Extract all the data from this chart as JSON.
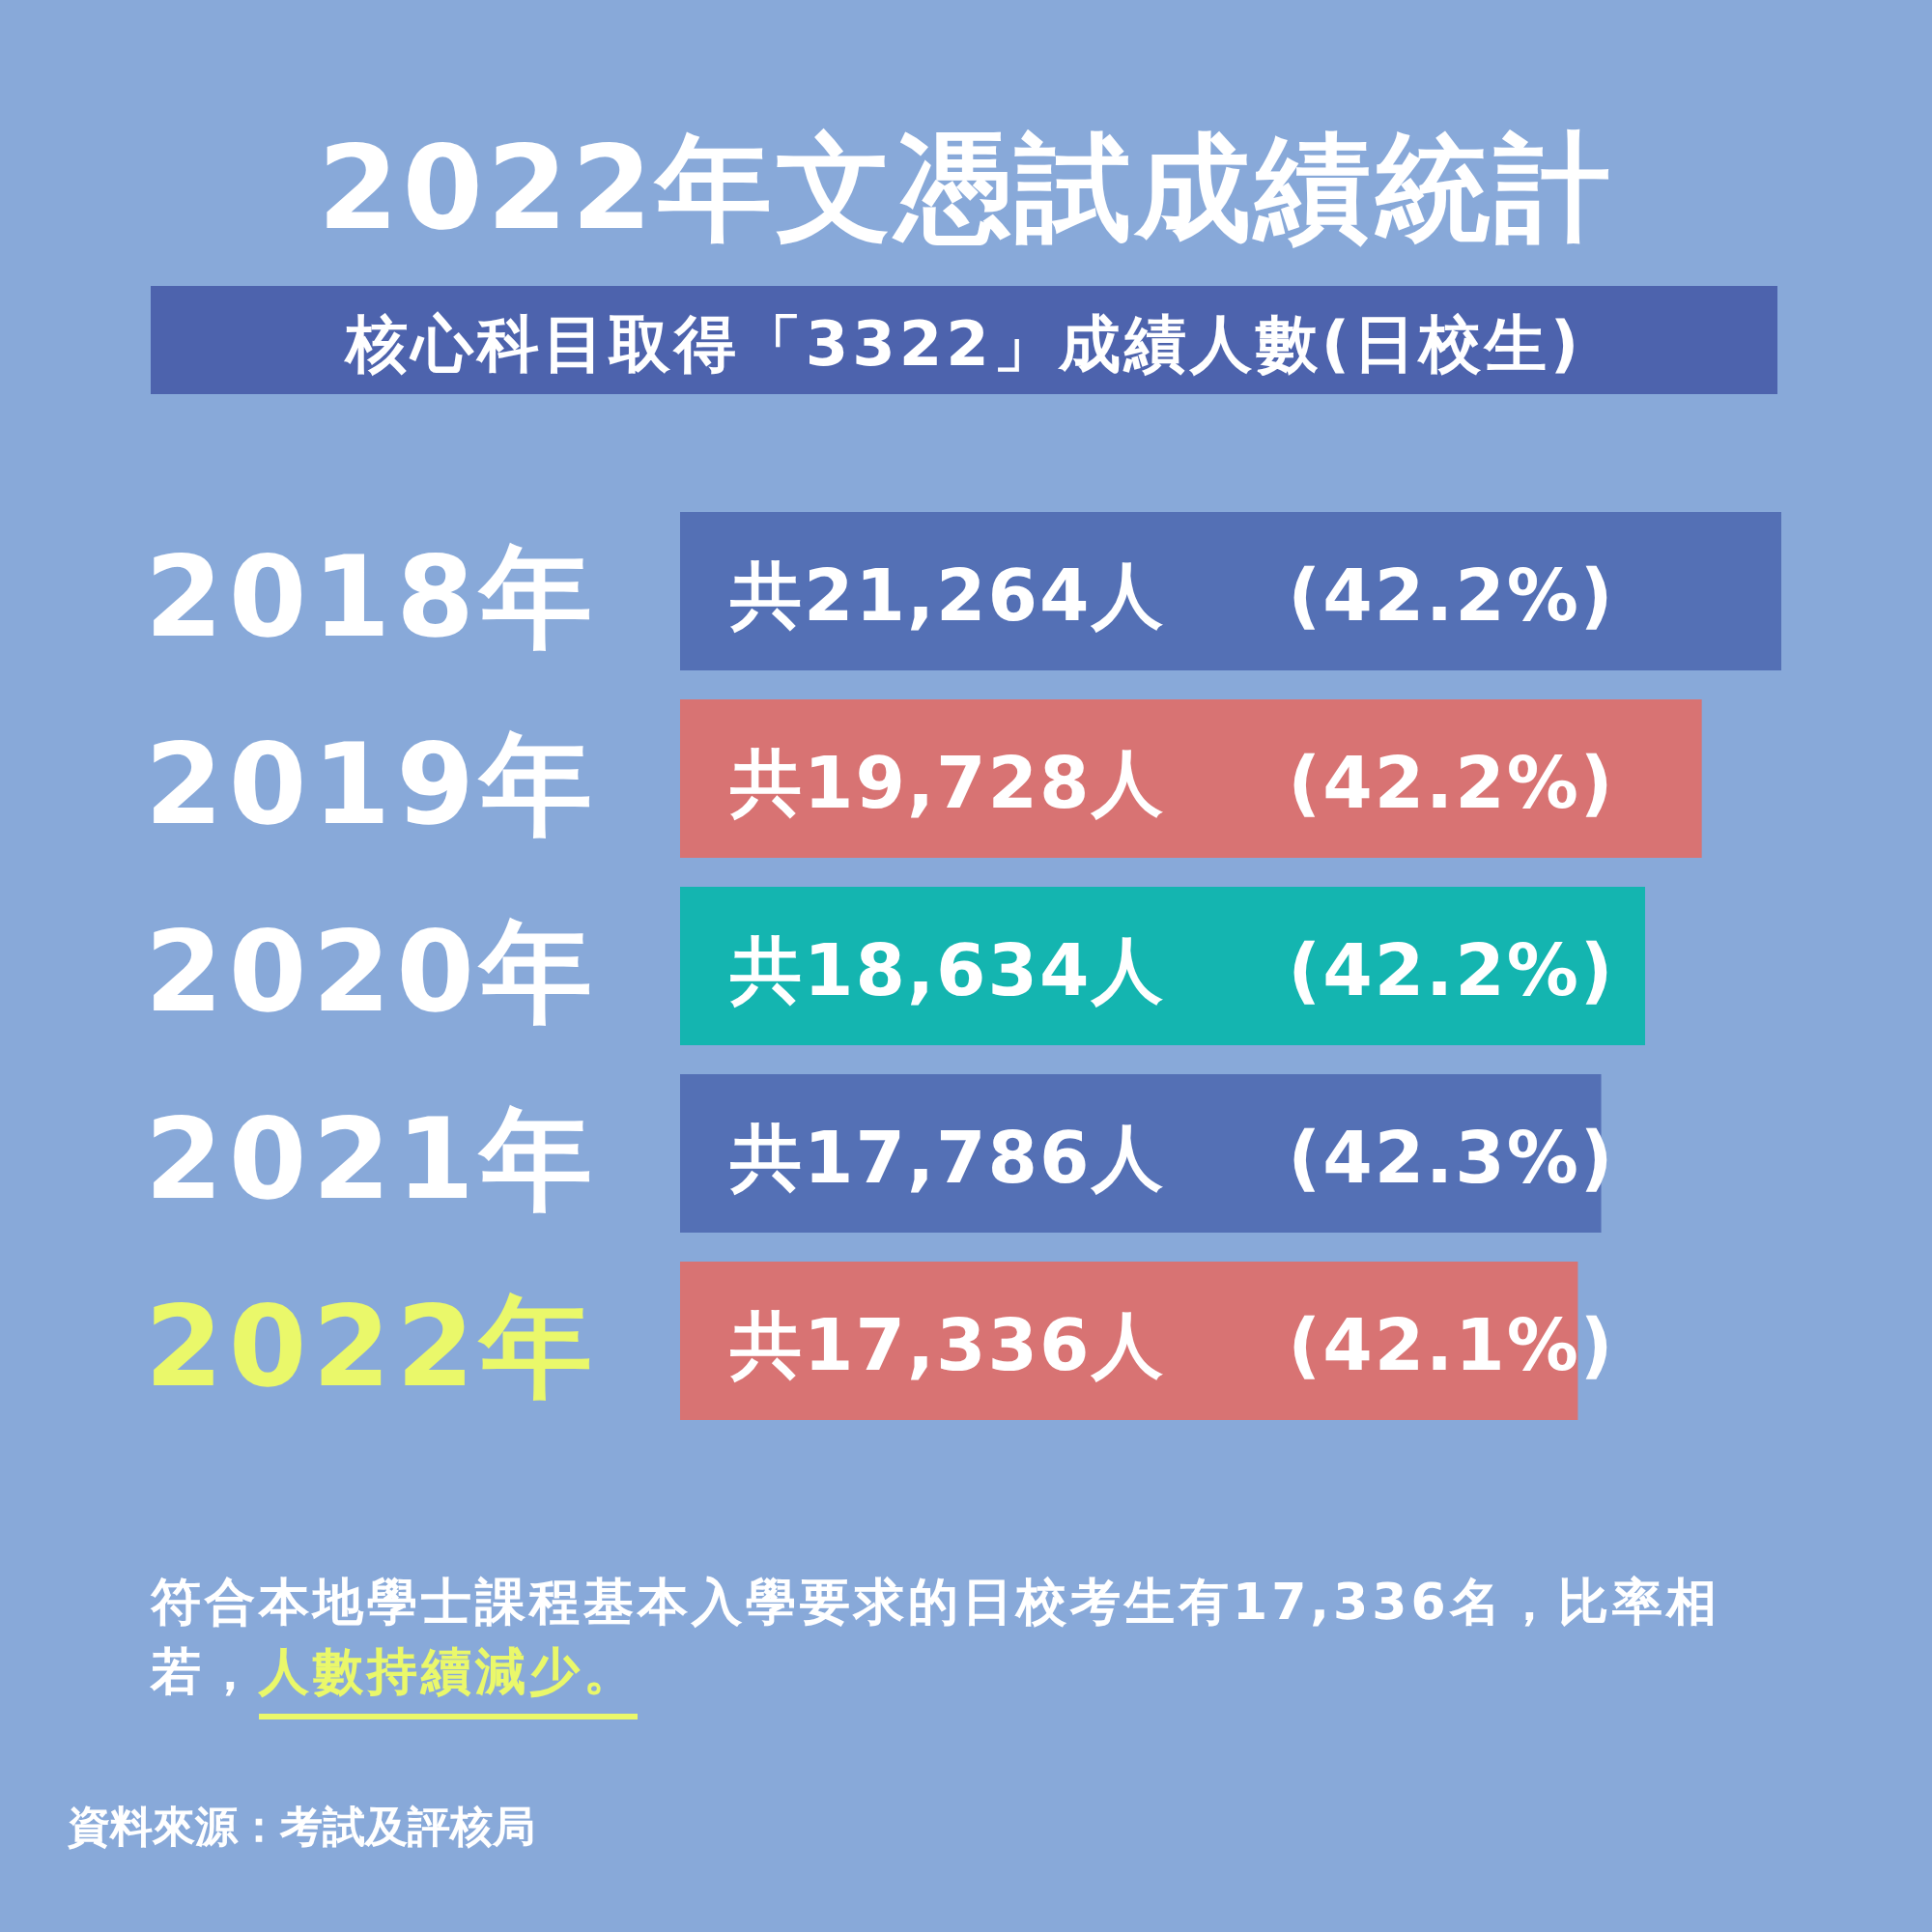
{
  "chart_data": {
    "type": "bar",
    "orientation": "horizontal",
    "title": "2022年文憑試成績統計",
    "subtitle": "核心科目取得「3322」成績人數(日校生)",
    "categories": [
      "2018年",
      "2019年",
      "2020年",
      "2021年",
      "2022年"
    ],
    "values": [
      21264,
      19728,
      18634,
      17786,
      17336
    ],
    "colors": [
      "#5470b5",
      "#d87373",
      "#14b5b0",
      "#5470b5",
      "#d87373"
    ],
    "value_labels": [
      "共21,264人 (42.2%)",
      "共19,728人 (42.2%)",
      "共18,634人 (42.2%)",
      "共17,786人 (42.3%)",
      "共17,336人 (42.1%)"
    ],
    "annotations": [
      "符合本地學士課程基本入學要求的日校考生有17,336名，比率相若，",
      "人數持續減少。",
      "資料來源：考試及評核局"
    ]
  }
}
